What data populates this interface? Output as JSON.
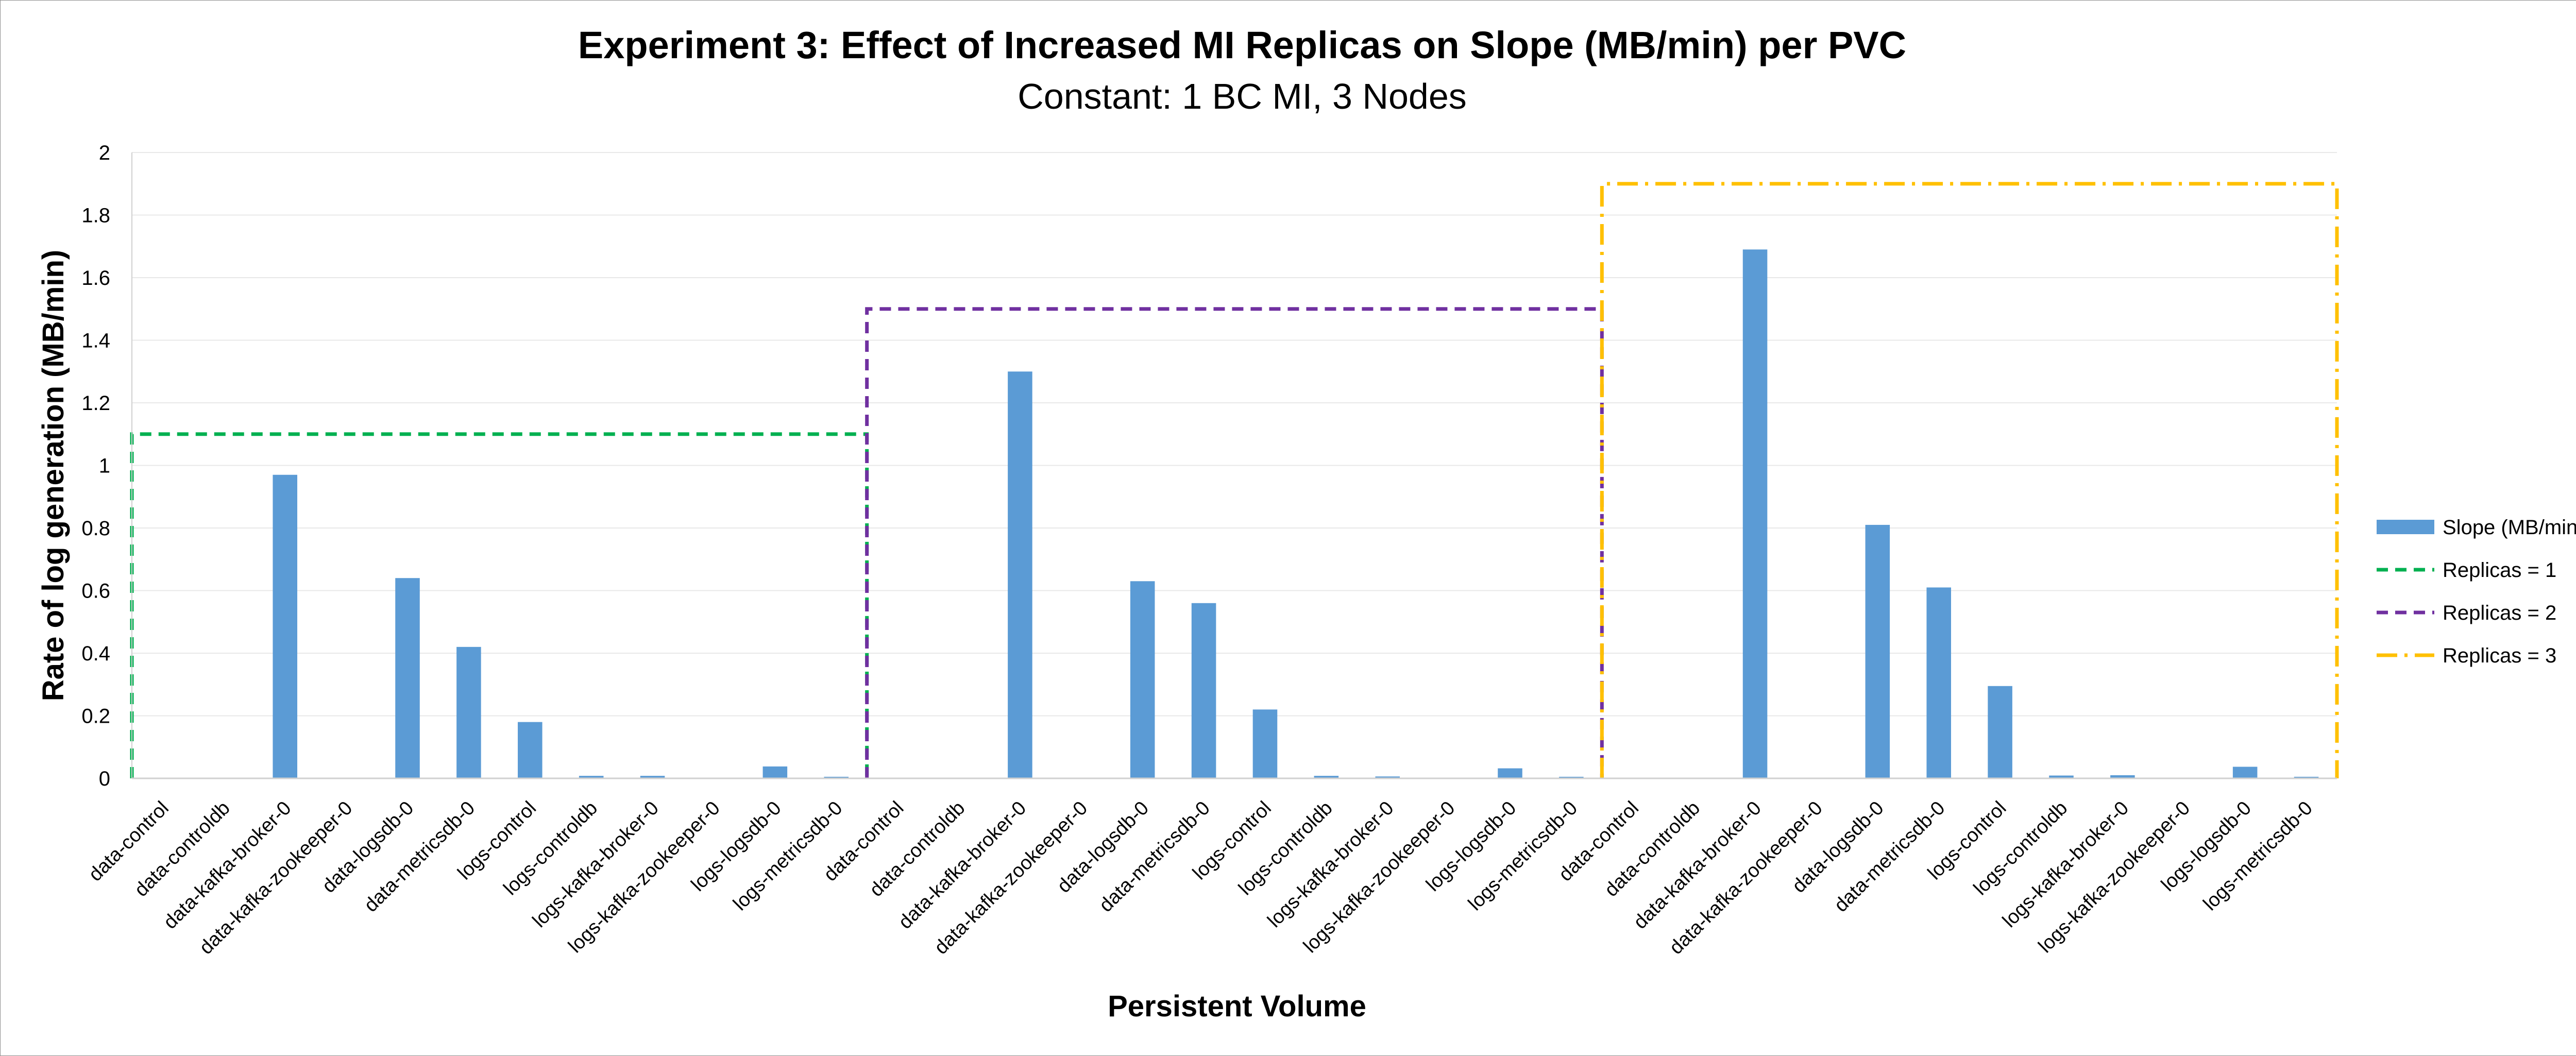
{
  "chart_data": {
    "type": "bar",
    "title": "Experiment 3: Effect of Increased MI Replicas on Slope (MB/min) per PVC",
    "subtitle": "Constant: 1 BC MI, 3 Nodes",
    "xlabel": "Persistent Volume",
    "ylabel": "Rate of log generation (MB/min)",
    "ylim": [
      0,
      2
    ],
    "yticks": [
      0,
      0.2,
      0.4,
      0.6,
      0.8,
      1,
      1.2,
      1.4,
      1.6,
      1.8,
      2
    ],
    "ytick_labels": [
      "0",
      "0.2",
      "0.4",
      "0.6",
      "0.8",
      "1",
      "1.2",
      "1.4",
      "1.6",
      "1.8",
      "2"
    ],
    "grid": true,
    "legend_position": "right",
    "categories": [
      "data-control",
      "data-controldb",
      "data-kafka-broker-0",
      "data-kafka-zookeeper-0",
      "data-logsdb-0",
      "data-metricsdb-0",
      "logs-control",
      "logs-controldb",
      "logs-kafka-broker-0",
      "logs-kafka-zookeeper-0",
      "logs-logsdb-0",
      "logs-metricsdb-0",
      "data-control",
      "data-controldb",
      "data-kafka-broker-0",
      "data-kafka-zookeeper-0",
      "data-logsdb-0",
      "data-metricsdb-0",
      "logs-control",
      "logs-controldb",
      "logs-kafka-broker-0",
      "logs-kafka-zookeeper-0",
      "logs-logsdb-0",
      "logs-metricsdb-0",
      "data-control",
      "data-controldb",
      "data-kafka-broker-0",
      "data-kafka-zookeeper-0",
      "data-logsdb-0",
      "data-metricsdb-0",
      "logs-control",
      "logs-controldb",
      "logs-kafka-broker-0",
      "logs-kafka-zookeeper-0",
      "logs-logsdb-0",
      "logs-metricsdb-0"
    ],
    "series": [
      {
        "name": "Slope (MB/min)",
        "color": "#5b9bd5",
        "values": [
          0,
          0,
          0.97,
          0,
          0.64,
          0.42,
          0.18,
          0.008,
          0.008,
          0,
          0.038,
          0.005,
          0,
          0,
          1.3,
          0,
          0.63,
          0.56,
          0.22,
          0.008,
          0.006,
          0,
          0.032,
          0.005,
          0,
          0,
          1.69,
          0,
          0.81,
          0.61,
          0.295,
          0.009,
          0.01,
          0,
          0.037,
          0.005
        ]
      }
    ],
    "regions": [
      {
        "name": "Replicas = 1",
        "color": "#00b050",
        "dash": "dashed",
        "from_index": 0,
        "to_index": 11,
        "y": 1.1
      },
      {
        "name": "Replicas = 2",
        "color": "#7030a0",
        "dash": "dashed",
        "from_index": 12,
        "to_index": 23,
        "y": 1.5
      },
      {
        "name": "Replicas = 3",
        "color": "#ffc000",
        "dash": "dash-dot",
        "from_index": 24,
        "to_index": 35,
        "y": 1.9
      }
    ]
  }
}
